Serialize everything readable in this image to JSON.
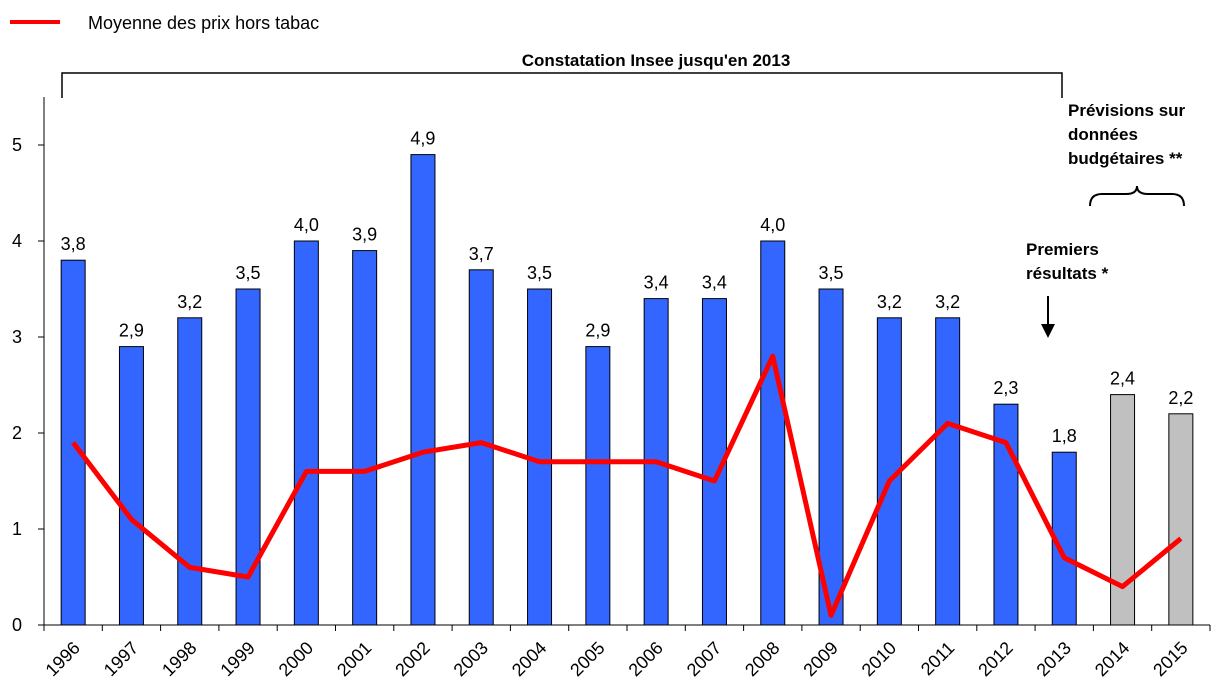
{
  "chart_data": {
    "type": "bar_line",
    "categories": [
      "1996",
      "1997",
      "1998",
      "1999",
      "2000",
      "2001",
      "2002",
      "2003",
      "2004",
      "2005",
      "2006",
      "2007",
      "2008",
      "2009",
      "2010",
      "2011",
      "2012",
      "2013",
      "2014",
      "2015"
    ],
    "series": [
      {
        "type": "bar",
        "colors": [
          "#3366ff",
          "#3366ff",
          "#3366ff",
          "#3366ff",
          "#3366ff",
          "#3366ff",
          "#3366ff",
          "#3366ff",
          "#3366ff",
          "#3366ff",
          "#3366ff",
          "#3366ff",
          "#3366ff",
          "#3366ff",
          "#3366ff",
          "#3366ff",
          "#3366ff",
          "#3366ff",
          "#c0c0c0",
          "#c0c0c0"
        ],
        "values": [
          3.8,
          2.9,
          3.2,
          3.5,
          4.0,
          3.9,
          4.9,
          3.7,
          3.5,
          2.9,
          3.4,
          3.4,
          4.0,
          3.5,
          3.2,
          3.2,
          2.3,
          1.8,
          2.4,
          2.2
        ],
        "value_labels": [
          "3,8",
          "2,9",
          "3,2",
          "3,5",
          "4,0",
          "3,9",
          "4,9",
          "3,7",
          "3,5",
          "2,9",
          "3,4",
          "3,4",
          "4,0",
          "3,5",
          "3,2",
          "3,2",
          "2,3",
          "1,8",
          "2,4",
          "2,2"
        ]
      },
      {
        "type": "line",
        "name": "Moyenne des prix hors tabac",
        "color": "#ff0000",
        "values": [
          1.9,
          1.1,
          0.6,
          0.5,
          1.6,
          1.6,
          1.8,
          1.9,
          1.7,
          1.7,
          1.7,
          1.5,
          2.8,
          0.1,
          1.5,
          2.1,
          1.9,
          0.7,
          0.4,
          0.9
        ]
      }
    ],
    "ylim": [
      0,
      5.5
    ],
    "yticks": [
      0,
      1,
      2,
      3,
      4,
      5
    ],
    "legend": "top-left",
    "annotations": [
      {
        "lines": [
          "Constatation Insee jusqu'en 2013"
        ]
      },
      {
        "lines": [
          "Prévisions sur",
          "données",
          "budgétaires **"
        ]
      },
      {
        "lines": [
          "Premiers",
          "résultats *"
        ]
      }
    ]
  }
}
